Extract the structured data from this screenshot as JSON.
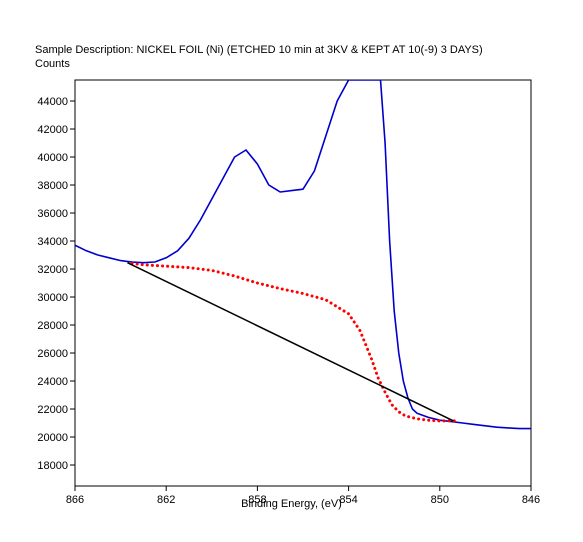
{
  "chart_data": {
    "type": "line",
    "title": "Sample Description:  NICKEL FOIL (Ni) (ETCHED 10 min at 3KV & KEPT AT 10(-9) 3 DAYS)",
    "ylabel": "Counts",
    "xlabel": "Binding Energy, (eV)",
    "xlim": [
      866,
      846
    ],
    "ylim": [
      16500,
      45500
    ],
    "x_reversed": true,
    "grid": false,
    "x_ticks": [
      866,
      862,
      858,
      854,
      850,
      846
    ],
    "y_ticks": [
      18000,
      20000,
      22000,
      24000,
      26000,
      28000,
      30000,
      32000,
      34000,
      36000,
      38000,
      40000,
      42000,
      44000
    ],
    "series": [
      {
        "color": "#0000cc",
        "style": "solid",
        "x": [
          866,
          865.5,
          865,
          864.5,
          864,
          863.5,
          863,
          862.5,
          862,
          861.5,
          861,
          860.5,
          860,
          859.5,
          859,
          858.5,
          858,
          857.5,
          857.2,
          857,
          856.5,
          856,
          855.5,
          855,
          854.5,
          854,
          853.5,
          853.2,
          853,
          852.8,
          852.6,
          852.4,
          852.2,
          852,
          851.8,
          851.6,
          851.4,
          851.2,
          851,
          850.5,
          850,
          849.5,
          849,
          848.5,
          848,
          847.5,
          847,
          846.5,
          846
        ],
        "y": [
          33700,
          33300,
          33000,
          32800,
          32600,
          32500,
          32450,
          32500,
          32800,
          33300,
          34200,
          35500,
          37000,
          38500,
          40000,
          40500,
          39500,
          38000,
          37700,
          37500,
          37600,
          37700,
          39000,
          41500,
          44000,
          45500,
          45500,
          45500,
          45500,
          45500,
          45500,
          41000,
          34000,
          29000,
          26000,
          24000,
          22800,
          22000,
          21700,
          21400,
          21200,
          21100,
          21000,
          20900,
          20800,
          20700,
          20650,
          20600,
          20600
        ]
      },
      {
        "color": "#ff0000",
        "style": "dotted",
        "x": [
          863.5,
          863,
          862,
          861,
          860,
          859,
          858,
          857,
          856,
          855,
          854,
          853.5,
          853,
          852.7,
          852.4,
          852.1,
          851.8,
          851.5,
          851,
          850.5,
          850,
          849.5,
          849.3
        ],
        "y": [
          32400,
          32300,
          32200,
          32100,
          31900,
          31500,
          31000,
          30600,
          30250,
          29800,
          28800,
          27600,
          25600,
          24200,
          23200,
          22300,
          21800,
          21500,
          21300,
          21200,
          21150,
          21150,
          21150
        ]
      },
      {
        "color": "#000000",
        "style": "solid",
        "x": [
          863.7,
          849.4
        ],
        "y": [
          32450,
          21150
        ]
      }
    ]
  }
}
